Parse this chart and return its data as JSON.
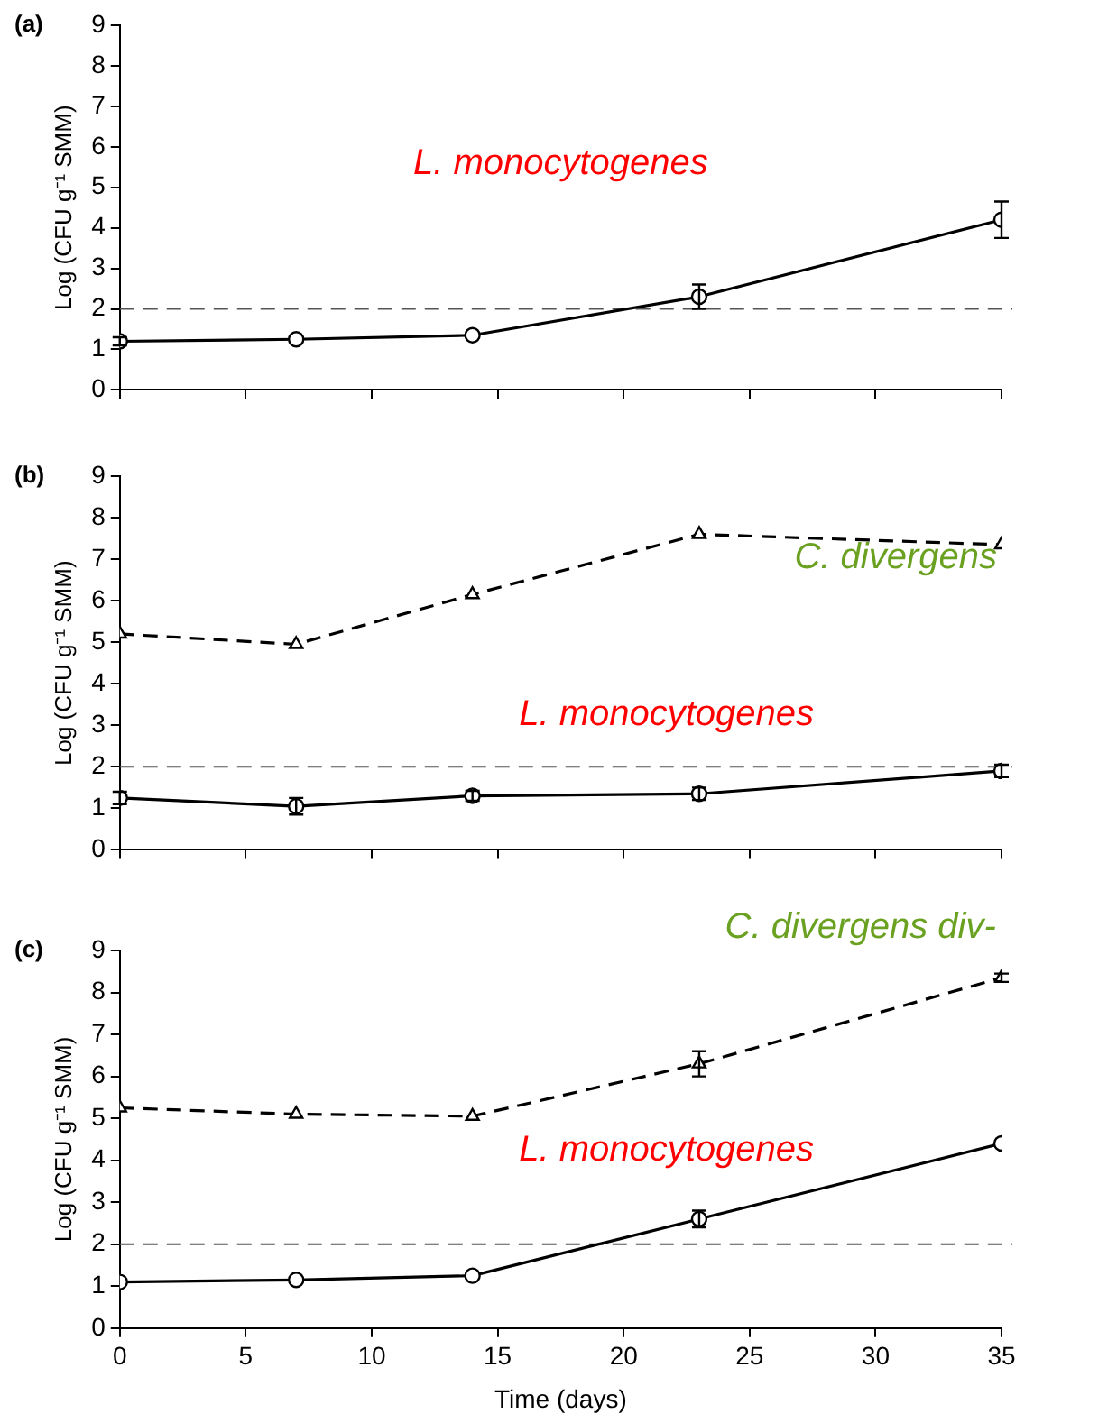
{
  "chart_data": [
    {
      "type": "line",
      "title": "(a)",
      "ylabel": "Log (CFU g⁻¹ SMM)",
      "x": [
        0,
        7,
        14,
        23,
        35
      ],
      "xlim": [
        0,
        35
      ],
      "xticks": [
        {
          "value": 0,
          "label": null
        },
        {
          "value": 5,
          "label": null
        },
        {
          "value": 10,
          "label": null
        },
        {
          "value": 15,
          "label": null
        },
        {
          "value": 20,
          "label": null
        },
        {
          "value": 25,
          "label": null
        },
        {
          "value": 30,
          "label": null
        },
        {
          "value": 35,
          "label": null
        }
      ],
      "ylim": [
        0,
        9
      ],
      "yticks": [
        0,
        1,
        2,
        3,
        4,
        5,
        6,
        7,
        8,
        9
      ],
      "tick_labels": "y",
      "grid": false,
      "legend": false,
      "series": [
        {
          "name": "L. monocytogenes",
          "color": "#000000",
          "values": [
            1.2,
            1.25,
            1.35,
            2.3,
            4.2
          ],
          "errors": [
            0.1,
            null,
            null,
            0.3,
            0.45
          ],
          "marker": "circle",
          "line_style": "solid"
        }
      ],
      "ref_lines": [
        {
          "axis": "y",
          "value": 2,
          "color": "#555555",
          "line_style": "dashed"
        }
      ]
    },
    {
      "type": "line",
      "title": "(b)",
      "ylabel": "Log (CFU g⁻¹ SMM)",
      "x": [
        0,
        7,
        14,
        23,
        35
      ],
      "xlim": [
        0,
        35
      ],
      "xticks": [
        {
          "value": 0,
          "label": null
        },
        {
          "value": 5,
          "label": null
        },
        {
          "value": 10,
          "label": null
        },
        {
          "value": 15,
          "label": null
        },
        {
          "value": 20,
          "label": null
        },
        {
          "value": 25,
          "label": null
        },
        {
          "value": 30,
          "label": null
        },
        {
          "value": 35,
          "label": null
        }
      ],
      "ylim": [
        0,
        9
      ],
      "yticks": [
        0,
        1,
        2,
        3,
        4,
        5,
        6,
        7,
        8,
        9
      ],
      "tick_labels": "y",
      "grid": false,
      "legend": false,
      "series": [
        {
          "name": "L. monocytogenes",
          "color": "#000000",
          "values": [
            1.25,
            1.05,
            1.3,
            1.35,
            1.9
          ],
          "errors": [
            0.15,
            0.2,
            0.12,
            0.15,
            0.15
          ],
          "marker": "circle",
          "line_style": "solid"
        },
        {
          "name": "C. divergens",
          "color": "#000000",
          "values": [
            5.2,
            4.95,
            6.15,
            7.6,
            7.35
          ],
          "marker": "triangle",
          "line_style": "dashed"
        }
      ],
      "ref_lines": [
        {
          "axis": "y",
          "value": 2,
          "color": "#555555",
          "line_style": "dashed"
        }
      ]
    },
    {
      "type": "line",
      "title": "(c)",
      "ylabel": "Log (CFU g⁻¹ SMM)",
      "xlabel": "Time (days)",
      "x": [
        0,
        7,
        14,
        23,
        35
      ],
      "xlim": [
        0,
        35
      ],
      "xticks": [
        0,
        5,
        10,
        15,
        20,
        25,
        30,
        35
      ],
      "ylim": [
        0,
        9
      ],
      "yticks": [
        0,
        1,
        2,
        3,
        4,
        5,
        6,
        7,
        8,
        9
      ],
      "grid": false,
      "legend": false,
      "series": [
        {
          "name": "L. monocytogenes",
          "color": "#000000",
          "values": [
            1.1,
            1.15,
            1.25,
            2.6,
            4.4
          ],
          "errors": [
            null,
            null,
            null,
            0.2,
            null
          ],
          "marker": "circle",
          "line_style": "solid"
        },
        {
          "name": "C. divergens div-",
          "color": "#000000",
          "values": [
            5.25,
            5.1,
            5.05,
            6.3,
            8.35
          ],
          "errors": [
            null,
            null,
            null,
            0.3,
            0.1
          ],
          "marker": "triangle",
          "line_style": "dashed"
        }
      ],
      "ref_lines": [
        {
          "axis": "y",
          "value": 2,
          "color": "#555555",
          "line_style": "dashed"
        }
      ]
    }
  ]
}
